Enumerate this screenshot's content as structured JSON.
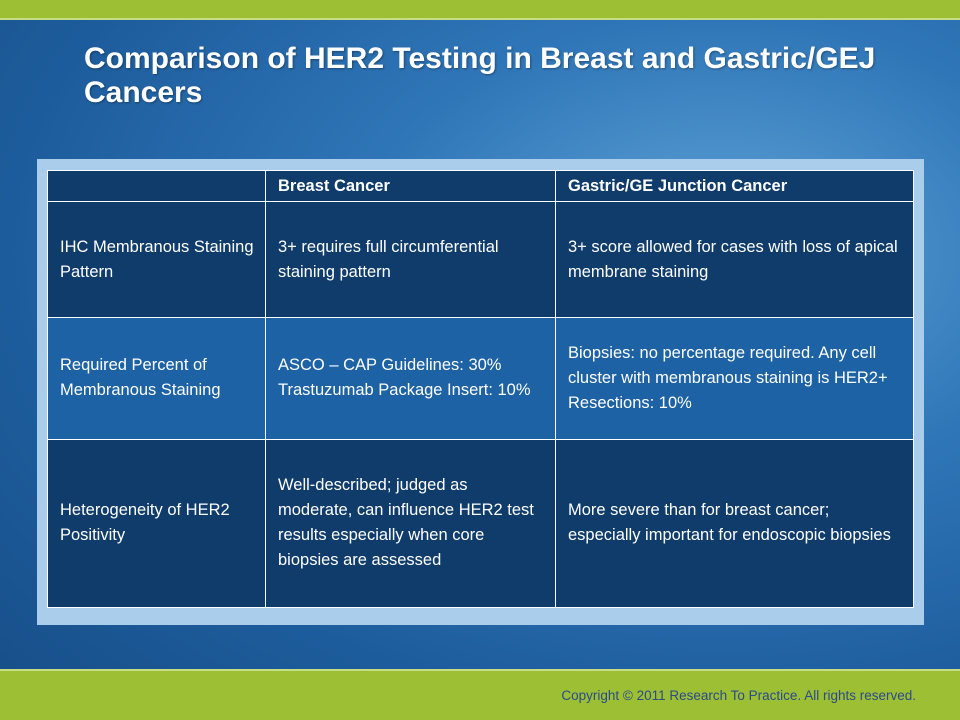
{
  "slide": {
    "title": "Comparison of HER2 Testing in Breast and Gastric/GEJ Cancers",
    "copyright": "Copyright © 2011 Research To Practice. All rights reserved."
  },
  "table": {
    "headers": [
      "",
      "Breast Cancer",
      "Gastric/GE Junction Cancer"
    ],
    "rows": [
      {
        "label": "IHC Membranous Staining Pattern",
        "breast": "3+ requires full circumferential staining pattern",
        "gastric": "3+ score allowed for cases with loss of apical membrane staining"
      },
      {
        "label": "Required Percent of Membranous Staining",
        "breast_lines": [
          "ASCO – CAP Guidelines: 30%",
          "Trastuzumab Package Insert: 10%"
        ],
        "gastric_lines": [
          "Biopsies: no percentage required. Any cell cluster with membranous staining is HER2+",
          "Resections: 10%"
        ]
      },
      {
        "label": "Heterogeneity of HER2 Positivity",
        "breast": "Well-described; judged as moderate, can influence HER2 test results especially when core biopsies are assessed",
        "gastric": "More severe than for breast cancer; especially important for endoscopic biopsies"
      }
    ]
  }
}
